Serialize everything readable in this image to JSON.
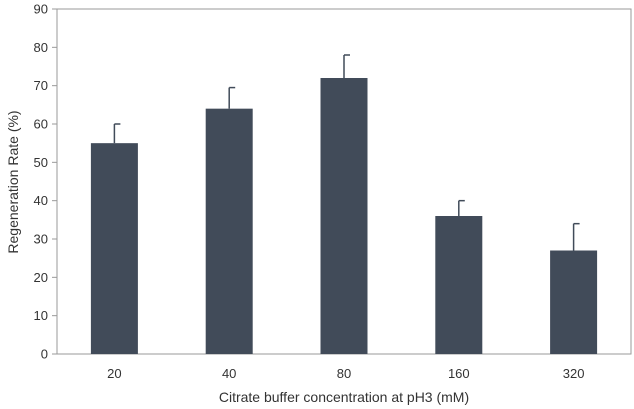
{
  "chart_data": {
    "type": "bar",
    "title": "",
    "xlabel": "Citrate buffer concentration at pH3 (mM)",
    "ylabel": "Regeneration Rate (%)",
    "categories": [
      "20",
      "40",
      "80",
      "160",
      "320"
    ],
    "values": [
      55,
      64,
      72,
      36,
      27
    ],
    "error_plus": [
      5,
      5.5,
      6,
      4,
      7
    ],
    "ylim": [
      0,
      90
    ],
    "yticks": [
      0,
      10,
      20,
      30,
      40,
      50,
      60,
      70,
      80,
      90
    ],
    "ytick_labels": [
      "0",
      "10",
      "20",
      "30",
      "40",
      "50",
      "60",
      "70",
      "80",
      "90"
    ],
    "grid": false,
    "bar_color": "#414b59",
    "axis_color": "#9a9a9a",
    "legend": "none"
  }
}
